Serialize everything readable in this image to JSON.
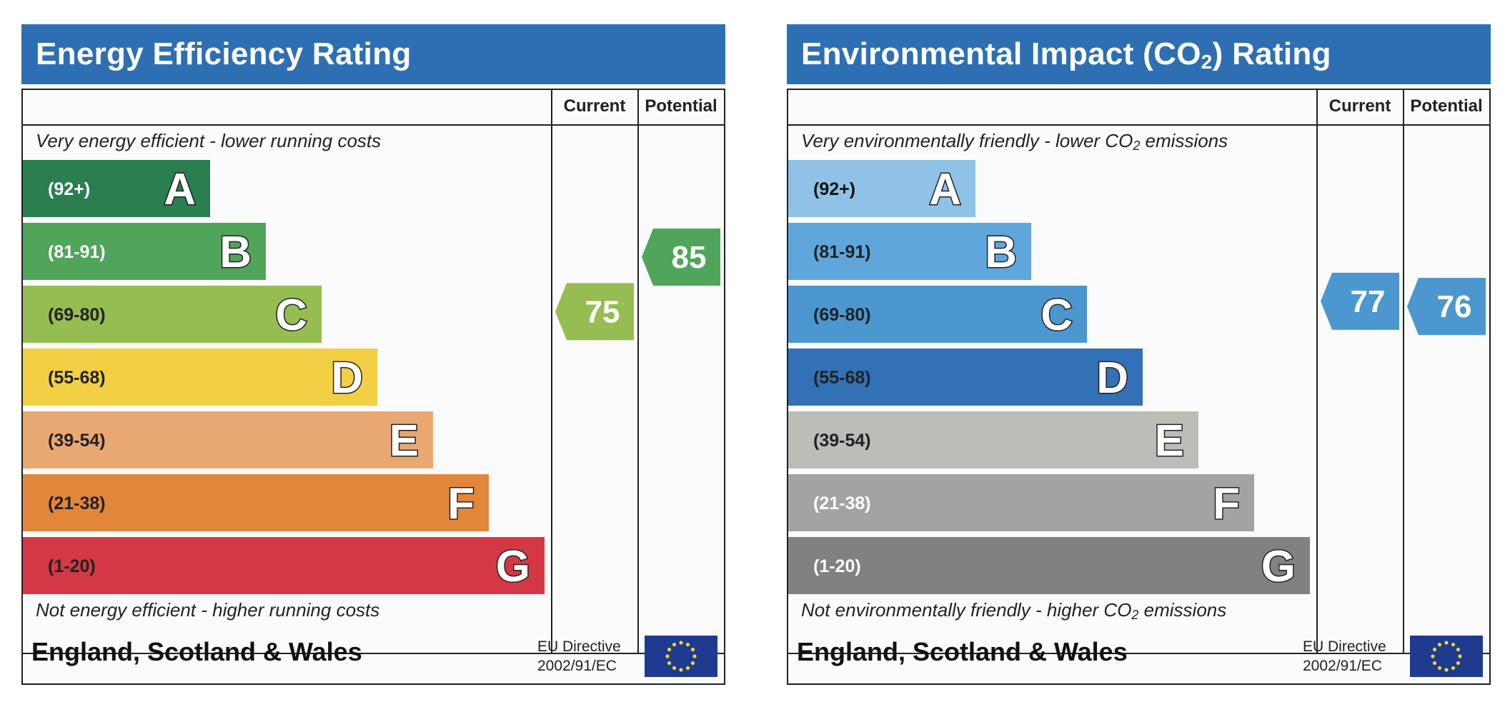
{
  "charts": [
    {
      "title": "Energy Efficiency Rating",
      "title_sub": "",
      "title_after": "",
      "col_current": "Current",
      "col_potential": "Potential",
      "top_caption": "Very energy efficient - lower running costs",
      "top_caption_sub": "",
      "top_caption_after": "",
      "bottom_caption": "Not energy efficient - higher running costs",
      "bottom_caption_sub": "",
      "bottom_caption_after": "",
      "footer": "England, Scotland & Wales",
      "eu_line1": "EU Directive",
      "eu_line2": "2002/91/EC",
      "label_text_light": true
    },
    {
      "title": "Environmental Impact (CO",
      "title_sub": "2",
      "title_after": ") Rating",
      "col_current": "Current",
      "col_potential": "Potential",
      "top_caption": "Very environmentally friendly - lower CO",
      "top_caption_sub": "2",
      "top_caption_after": " emissions",
      "bottom_caption": "Not environmentally friendly - higher CO",
      "bottom_caption_sub": "2",
      "bottom_caption_after": " emissions",
      "footer": "England, Scotland & Wales",
      "eu_line1": "EU Directive",
      "eu_line2": "2002/91/EC",
      "label_text_light": false
    }
  ],
  "chart_data": [
    {
      "type": "bar",
      "bands": [
        {
          "range": "(92+)",
          "letter": "A",
          "color": "#2a7e4f",
          "text_color": "#ffffff"
        },
        {
          "range": "(81-91)",
          "letter": "B",
          "color": "#4fa55a",
          "text_color": "#ffffff"
        },
        {
          "range": "(69-80)",
          "letter": "C",
          "color": "#95bd52",
          "text_color": "#222222"
        },
        {
          "range": "(55-68)",
          "letter": "D",
          "color": "#f2cf43",
          "text_color": "#222222"
        },
        {
          "range": "(39-54)",
          "letter": "E",
          "color": "#e9a772",
          "text_color": "#222222"
        },
        {
          "range": "(21-38)",
          "letter": "F",
          "color": "#e2863b",
          "text_color": "#222222"
        },
        {
          "range": "(1-20)",
          "letter": "G",
          "color": "#d43845",
          "text_color": "#222222"
        }
      ],
      "current": {
        "value": 75,
        "band": "C",
        "color": "#95bd52"
      },
      "potential": {
        "value": 85,
        "band": "B",
        "color": "#4fa55a"
      }
    },
    {
      "type": "bar",
      "bands": [
        {
          "range": "(92+)",
          "letter": "A",
          "color": "#8fc2e6",
          "text_color": "#111111"
        },
        {
          "range": "(81-91)",
          "letter": "B",
          "color": "#5fa7db",
          "text_color": "#222222"
        },
        {
          "range": "(69-80)",
          "letter": "C",
          "color": "#4c97cf",
          "text_color": "#222222"
        },
        {
          "range": "(55-68)",
          "letter": "D",
          "color": "#3271b5",
          "text_color": "#222222"
        },
        {
          "range": "(39-54)",
          "letter": "E",
          "color": "#bcbcb9",
          "text_color": "#222222"
        },
        {
          "range": "(21-38)",
          "letter": "F",
          "color": "#a3a3a1",
          "text_color": "#ffffff"
        },
        {
          "range": "(1-20)",
          "letter": "G",
          "color": "#818180",
          "text_color": "#ffffff"
        }
      ],
      "current": {
        "value": 77,
        "band": "C",
        "color": "#4c97cf"
      },
      "potential": {
        "value": 76,
        "band": "C",
        "color": "#4c97cf"
      }
    }
  ]
}
